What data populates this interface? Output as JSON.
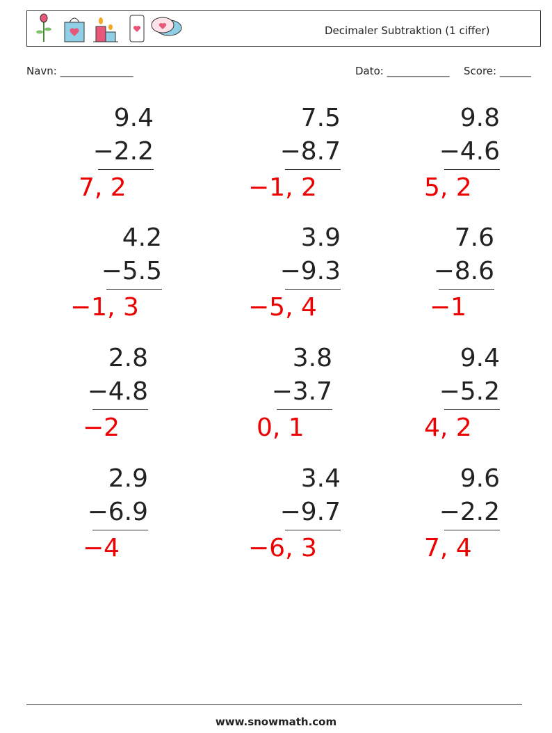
{
  "header": {
    "title": "Decimaler Subtraktion (1 ciffer)"
  },
  "fields": {
    "name": "Navn: ______________",
    "date": "Dato: ____________",
    "score": "Score: ______"
  },
  "problems": [
    {
      "top": "9.4",
      "bottom": "−2.2",
      "answer": "7, 2"
    },
    {
      "top": "7.5",
      "bottom": "−8.7",
      "answer": "−1, 2"
    },
    {
      "top": "9.8",
      "bottom": "−4.6",
      "answer": "5, 2"
    },
    {
      "top": "4.2",
      "bottom": "−5.5",
      "answer": "−1, 3"
    },
    {
      "top": "3.9",
      "bottom": "−9.3",
      "answer": "−5, 4"
    },
    {
      "top": "7.6",
      "bottom": "−8.6",
      "answer": "−1"
    },
    {
      "top": "2.8",
      "bottom": "−4.8",
      "answer": "−2"
    },
    {
      "top": "3.8",
      "bottom": "−3.7",
      "answer": "0, 1"
    },
    {
      "top": "9.4",
      "bottom": "−5.2",
      "answer": "4, 2"
    },
    {
      "top": "2.9",
      "bottom": "−6.9",
      "answer": "−4"
    },
    {
      "top": "3.4",
      "bottom": "−9.7",
      "answer": "−6, 3"
    },
    {
      "top": "9.6",
      "bottom": "−2.2",
      "answer": "7, 4"
    }
  ],
  "footer": {
    "url": "www.snowmath.com"
  }
}
